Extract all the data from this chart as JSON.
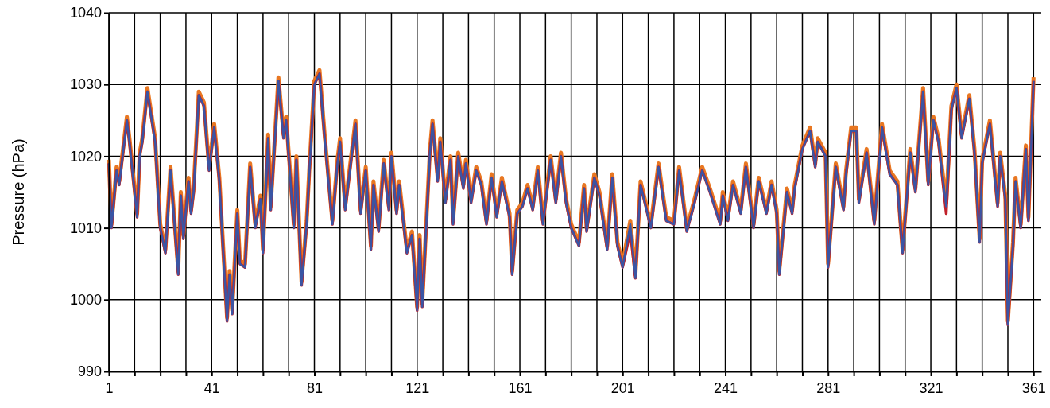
{
  "chart_data": {
    "type": "line",
    "ylabel": "Pressure (hPa)",
    "x": [
      1,
      2,
      4,
      5,
      8,
      9,
      12,
      13,
      14,
      16,
      19,
      21,
      23,
      25,
      28,
      29,
      30,
      32,
      33,
      34,
      36,
      38,
      40,
      42,
      44,
      47,
      48,
      49,
      51,
      52,
      54,
      56,
      58,
      60,
      61,
      63,
      64,
      67,
      69,
      70,
      73,
      74,
      76,
      78,
      79,
      81,
      83,
      85,
      88,
      90,
      91,
      93,
      97,
      99,
      101,
      103,
      104,
      106,
      108,
      110,
      111,
      113,
      114,
      117,
      119,
      121,
      122,
      123,
      126,
      127,
      129,
      130,
      132,
      134,
      135,
      137,
      139,
      140,
      142,
      144,
      146,
      148,
      150,
      152,
      154,
      157,
      158,
      160,
      162,
      164,
      166,
      168,
      170,
      173,
      175,
      177,
      179,
      181,
      184,
      186,
      187,
      190,
      192,
      195,
      197,
      199,
      201,
      204,
      206,
      208,
      212,
      215,
      218,
      221,
      223,
      226,
      229,
      232,
      235,
      239,
      240,
      242,
      244,
      247,
      249,
      252,
      254,
      257,
      259,
      261,
      262,
      265,
      267,
      268,
      271,
      274,
      276,
      277,
      280,
      281,
      284,
      287,
      288,
      290,
      292,
      293,
      296,
      299,
      302,
      305,
      308,
      310,
      313,
      315,
      318,
      320,
      322,
      324,
      327,
      329,
      331,
      333,
      336,
      338,
      340,
      341,
      344,
      347,
      348,
      350,
      351,
      353,
      354,
      356,
      358,
      359,
      361
    ],
    "series": [
      {
        "color": "#e87722",
        "values": [
          1019.5,
          1010.5,
          1018.5,
          1016.5,
          1025.5,
          1022.5,
          1012,
          1020.5,
          1022.5,
          1029.5,
          1022.5,
          1010.5,
          1007,
          1018.5,
          1004,
          1015,
          1009,
          1017,
          1012.5,
          1015.5,
          1029,
          1027.5,
          1018.5,
          1024.5,
          1017,
          997.5,
          1004,
          998.5,
          1012.5,
          1005.5,
          1005,
          1019,
          1010.5,
          1014.5,
          1007,
          1023,
          1013,
          1031,
          1023,
          1025.5,
          1010.5,
          1020,
          1002.5,
          1011,
          1018,
          1030.5,
          1032,
          1023,
          1011,
          1019.5,
          1022.5,
          1013,
          1025,
          1012.5,
          1018.5,
          1007.5,
          1016.5,
          1010,
          1019.5,
          1013,
          1020.5,
          1012.5,
          1016.5,
          1007,
          1009.5,
          999,
          1009,
          999.5,
          1021,
          1025,
          1017,
          1022.5,
          1014,
          1020,
          1011,
          1020.5,
          1016,
          1019.5,
          1014,
          1018.5,
          1016.5,
          1011,
          1017.5,
          1012,
          1017,
          1012,
          1004,
          1012.5,
          1013.5,
          1016,
          1013,
          1018.5,
          1011,
          1020,
          1014,
          1020.5,
          1014,
          1010.5,
          1008,
          1016,
          1010,
          1017.5,
          1015,
          1007.5,
          1017.5,
          1008,
          1005,
          1011,
          1003.5,
          1016.5,
          1010.5,
          1019,
          1011.5,
          1011,
          1018.5,
          1010,
          1014,
          1018.5,
          1015.5,
          1011,
          1015,
          1011.5,
          1016.5,
          1012.5,
          1019,
          1010.5,
          1017,
          1012.5,
          1016.5,
          1012.5,
          1004,
          1015.5,
          1012.5,
          1016,
          1021.5,
          1024,
          1019,
          1022.5,
          1020.5,
          1005,
          1019,
          1013,
          1018,
          1024,
          1024,
          1014,
          1021,
          1011,
          1024.5,
          1018,
          1016.5,
          1007,
          1021,
          1015.5,
          1029.5,
          1016.5,
          1025.5,
          1022.5,
          1013.5,
          1027,
          1030,
          1023,
          1028.5,
          1021,
          1008.5,
          1019.5,
          1025,
          1013.5,
          1020.5,
          1014.5,
          997,
          1008,
          1017,
          1010.5,
          1021.5,
          1011.5,
          1031
        ]
      },
      {
        "color": "#c0202a",
        "values": [
          1019,
          1010,
          1018,
          1016,
          1025,
          1022,
          1011.5,
          1020,
          1022,
          1029,
          1022,
          1010,
          1006.5,
          1018,
          1003.5,
          1014.5,
          1008.5,
          1016.5,
          1012,
          1015,
          1028.5,
          1027,
          1018,
          1024,
          1016.5,
          997,
          1003.5,
          998,
          1012,
          1005,
          1004.5,
          1018.5,
          1010,
          1014,
          1006.5,
          1022.5,
          1012.5,
          1030.5,
          1022.5,
          1025,
          1010,
          1019.5,
          1002,
          1010.5,
          1017.5,
          1030,
          1031.5,
          1022.5,
          1010.5,
          1019,
          1022,
          1012.5,
          1024.5,
          1012,
          1018,
          1007,
          1016,
          1009.5,
          1019,
          1012.5,
          1020,
          1012,
          1016,
          1006.5,
          1009,
          998.5,
          1008.5,
          999,
          1020.5,
          1024.5,
          1016.5,
          1022,
          1013.5,
          1019.5,
          1010.5,
          1020,
          1015.5,
          1019,
          1013.5,
          1018,
          1016,
          1010.5,
          1017,
          1011.5,
          1016.5,
          1011.5,
          1003.5,
          1012,
          1013,
          1015.5,
          1012.5,
          1018,
          1010.5,
          1019.5,
          1013.5,
          1020,
          1013.5,
          1010,
          1007.5,
          1015.5,
          1009.5,
          1017,
          1014.5,
          1007,
          1017,
          1007.5,
          1004.5,
          1009.5,
          1003,
          1016,
          1010,
          1018.5,
          1011,
          1010.5,
          1018,
          1009.5,
          1013.5,
          1018,
          1015,
          1010.5,
          1014.5,
          1011,
          1016,
          1012,
          1018.5,
          1010,
          1016.5,
          1012,
          1016,
          1012,
          1003.5,
          1015,
          1012,
          1015.5,
          1021,
          1023.5,
          1018.5,
          1022,
          1020,
          1004.5,
          1018.5,
          1012.5,
          1017.5,
          1023.5,
          1023.5,
          1013.5,
          1020.5,
          1010.5,
          1024,
          1017.5,
          1016,
          1006.5,
          1020.5,
          1015,
          1029,
          1016,
          1025,
          1022,
          1012,
          1026.5,
          1029.5,
          1022.5,
          1028,
          1020.5,
          1008,
          1019,
          1024.5,
          1013,
          1020,
          1014,
          996.5,
          1007.5,
          1016.5,
          1010,
          1021,
          1011,
          1030.5
        ]
      },
      {
        "color": "#3a55a4",
        "values": [
          1019,
          1010,
          1018,
          1016,
          1025,
          1022,
          1011.5,
          1020,
          1022,
          1029,
          1022,
          1010,
          1006.5,
          1018,
          1003.5,
          1014.5,
          1008.5,
          1016.5,
          1012,
          1015,
          1028.5,
          1027,
          1018,
          1024,
          1016.5,
          997,
          1003.5,
          998,
          1012,
          1005,
          1004.5,
          1018.5,
          1010,
          1014,
          1006.5,
          1022.5,
          1012.5,
          1030.5,
          1022.5,
          1025,
          1010,
          1019.5,
          1002,
          1010.5,
          1017.5,
          1030,
          1031.5,
          1022.5,
          1010.5,
          1019,
          1022,
          1012.5,
          1024.5,
          1012,
          1018,
          1007,
          1016,
          1009.5,
          1019,
          1012.5,
          1020,
          1012,
          1016,
          1006.5,
          1009,
          998.5,
          1008.5,
          999,
          1020.5,
          1024.5,
          1016.5,
          1022,
          1013.5,
          1019.5,
          1010.5,
          1020,
          1015.5,
          1019,
          1013.5,
          1018,
          1016,
          1010.5,
          1017,
          1011.5,
          1016.5,
          1011.5,
          1003.5,
          1012,
          1013,
          1015.5,
          1012.5,
          1018,
          1010.5,
          1019.5,
          1013.5,
          1020,
          1013.5,
          1010,
          1007.5,
          1015.5,
          1009.5,
          1017,
          1014.5,
          1007,
          1017,
          1007.5,
          1004.5,
          1010.5,
          1003,
          1016,
          1010,
          1018.5,
          1011,
          1010.5,
          1018,
          1009.5,
          1013.5,
          1018,
          1015,
          1010.5,
          1014.5,
          1011,
          1016,
          1012,
          1018.5,
          1010,
          1016.5,
          1012,
          1016,
          1012,
          1003.5,
          1015,
          1012,
          1015.5,
          1021,
          1023.5,
          1018.5,
          1022,
          1020,
          1004.5,
          1018.5,
          1012.5,
          1017.5,
          1023.5,
          1023.5,
          1013.5,
          1020.5,
          1010.5,
          1024,
          1017.5,
          1016,
          1006.5,
          1020.5,
          1015,
          1029,
          1016,
          1025,
          1022,
          1013,
          1026.5,
          1029.5,
          1022.5,
          1028,
          1020.5,
          1008,
          1019,
          1024.5,
          1013,
          1020,
          1014,
          996.5,
          1007.5,
          1016.5,
          1010,
          1021,
          1011,
          1030.5
        ]
      }
    ],
    "xlim": [
      1,
      364
    ],
    "xticks": [
      1,
      {
        "value": 11,
        "label": null
      },
      {
        "value": 21,
        "label": null
      },
      {
        "value": 31,
        "label": null
      },
      41,
      {
        "value": 51,
        "label": null
      },
      {
        "value": 61,
        "label": null
      },
      {
        "value": 71,
        "label": null
      },
      81,
      {
        "value": 91,
        "label": null
      },
      {
        "value": 101,
        "label": null
      },
      {
        "value": 111,
        "label": null
      },
      121,
      {
        "value": 131,
        "label": null
      },
      {
        "value": 141,
        "label": null
      },
      {
        "value": 151,
        "label": null
      },
      161,
      {
        "value": 171,
        "label": null
      },
      {
        "value": 181,
        "label": null
      },
      {
        "value": 191,
        "label": null
      },
      201,
      {
        "value": 211,
        "label": null
      },
      {
        "value": 221,
        "label": null
      },
      {
        "value": 231,
        "label": null
      },
      241,
      {
        "value": 251,
        "label": null
      },
      {
        "value": 261,
        "label": null
      },
      {
        "value": 271,
        "label": null
      },
      281,
      {
        "value": 291,
        "label": null
      },
      {
        "value": 301,
        "label": null
      },
      {
        "value": 311,
        "label": null
      },
      321,
      {
        "value": 331,
        "label": null
      },
      {
        "value": 341,
        "label": null
      },
      {
        "value": 351,
        "label": null
      },
      361
    ],
    "ylim": [
      990,
      1040
    ],
    "yticks": [
      990,
      1000,
      1010,
      1020,
      1030,
      1040
    ],
    "grid": true,
    "line_style": "solid"
  }
}
